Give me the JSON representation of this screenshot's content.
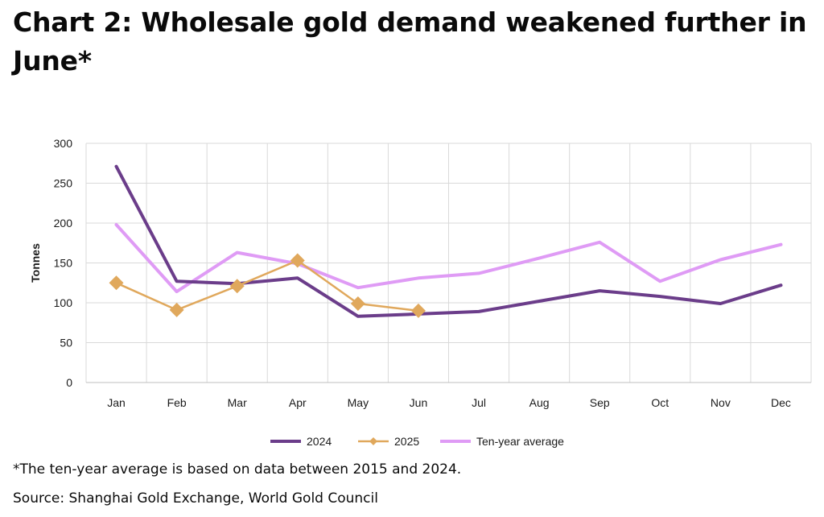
{
  "title": "Chart 2: Wholesale gold demand weakened further in June*",
  "footnote": "*The ten-year average is based on data between 2015 and 2024.",
  "source": "Source: Shanghai Gold Exchange, World Gold Council",
  "chart_data": {
    "type": "line",
    "title": "Chart 2: Wholesale gold demand weakened further in June*",
    "xlabel": "",
    "ylabel": "Tonnes",
    "ylim": [
      0,
      300
    ],
    "yticks": [
      0,
      50,
      100,
      150,
      200,
      250,
      300
    ],
    "grid": true,
    "legend_position": "bottom",
    "categories": [
      "Jan",
      "Feb",
      "Mar",
      "Apr",
      "May",
      "Jun",
      "Jul",
      "Aug",
      "Sep",
      "Oct",
      "Nov",
      "Dec"
    ],
    "series": [
      {
        "name": "2024",
        "color": "#6b3d8a",
        "marker": "none",
        "values": [
          271,
          127,
          124,
          131,
          83,
          86,
          89,
          102,
          115,
          108,
          99,
          122
        ]
      },
      {
        "name": "2025",
        "color": "#e0a85c",
        "marker": "diamond",
        "values": [
          125,
          91,
          121,
          153,
          99,
          90,
          null,
          null,
          null,
          null,
          null,
          null
        ]
      },
      {
        "name": "Ten-year average",
        "color": "#df9bf5",
        "marker": "none",
        "values": [
          198,
          114,
          163,
          149,
          119,
          131,
          137,
          156,
          176,
          127,
          154,
          173
        ]
      }
    ]
  }
}
